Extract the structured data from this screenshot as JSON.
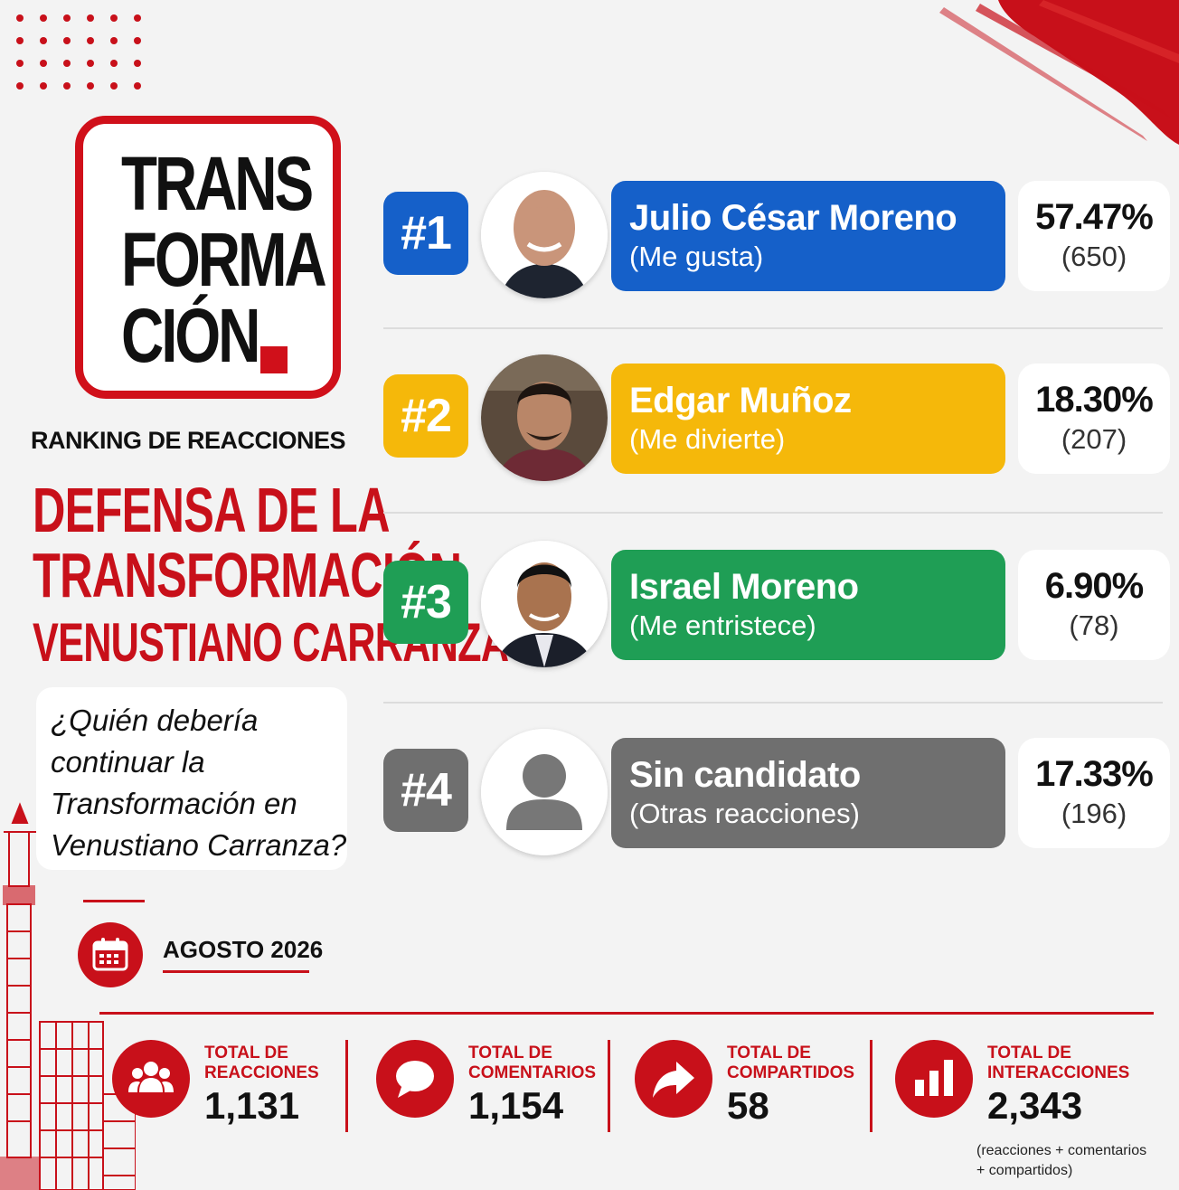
{
  "brand": {
    "logo_lines": [
      "TRANS",
      "FORMA",
      "CIÓN."
    ],
    "accent_color": "#c8101a"
  },
  "header": {
    "ranking_title": "RANKING DE REACCIONES",
    "title_line1": "DEFENSA DE LA",
    "title_line2": "TRANSFORMACIÓN",
    "title_line3": "VENUSTIANO CARRANZA"
  },
  "question": {
    "line1": "¿Quién debería",
    "line2": "continuar la",
    "line3": "Transformación en",
    "line4": "Venustiano Carranza?"
  },
  "date": {
    "label": "AGOSTO 2026",
    "icon": "calendar-icon"
  },
  "ranking": [
    {
      "rank": "#1",
      "name": "Julio César Moreno",
      "reaction": "(Me gusta)",
      "percent": "57.47%",
      "count": "(650)",
      "color": "#1560c9"
    },
    {
      "rank": "#2",
      "name": "Edgar Muñoz",
      "reaction": "(Me divierte)",
      "percent": "18.30%",
      "count": "(207)",
      "color": "#f5b80a"
    },
    {
      "rank": "#3",
      "name": "Israel Moreno",
      "reaction": "(Me entristece)",
      "percent": "6.90%",
      "count": "(78)",
      "color": "#1f9e55"
    },
    {
      "rank": "#4",
      "name": "Sin candidato",
      "reaction": "(Otras reacciones)",
      "percent": "17.33%",
      "count": "(196)",
      "color": "#6f6f6f"
    }
  ],
  "stats": [
    {
      "label_line1": "TOTAL DE",
      "label_line2": "REACCIONES",
      "value": "1,131",
      "icon": "people-icon"
    },
    {
      "label_line1": "TOTAL DE",
      "label_line2": "COMENTARIOS",
      "value": "1,154",
      "icon": "comment-icon"
    },
    {
      "label_line1": "TOTAL DE",
      "label_line2": "COMPARTIDOS",
      "value": "58",
      "icon": "share-icon"
    },
    {
      "label_line1": "TOTAL DE",
      "label_line2": "INTERACCIONES",
      "value": "2,343",
      "icon": "bar-chart-icon"
    }
  ],
  "footnote": {
    "line1": "(reacciones + comentarios",
    "line2": "+ compartidos)"
  }
}
